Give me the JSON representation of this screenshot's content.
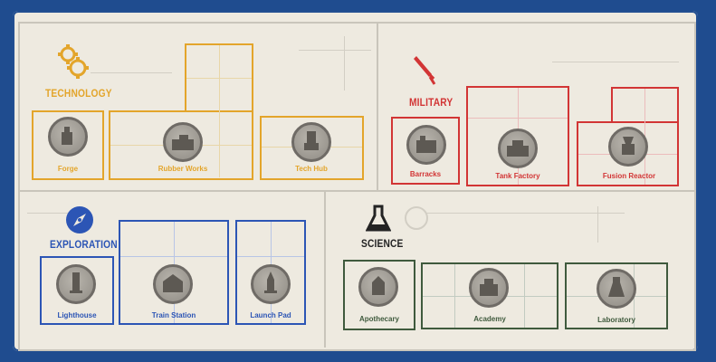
{
  "sections": {
    "technology": {
      "title": "TECHNOLOGY",
      "color": "#e3a52b",
      "icon": "gears-icon",
      "buildings": [
        {
          "name": "Forge"
        },
        {
          "name": "Rubber Works"
        },
        {
          "name": "Tech Hub"
        }
      ]
    },
    "military": {
      "title": "MILITARY",
      "color": "#d23535",
      "icon": "sword-icon",
      "buildings": [
        {
          "name": "Barracks"
        },
        {
          "name": "Tank Factory"
        },
        {
          "name": "Fusion Reactor"
        }
      ]
    },
    "exploration": {
      "title": "EXPLORATION",
      "color": "#2c55b5",
      "icon": "compass-icon",
      "buildings": [
        {
          "name": "Lighthouse"
        },
        {
          "name": "Train Station"
        },
        {
          "name": "Launch Pad"
        }
      ]
    },
    "science": {
      "title": "SCIENCE",
      "color": "#3f5a3d",
      "icon": "flask-icon",
      "buildings": [
        {
          "name": "Apothecary"
        },
        {
          "name": "Academy"
        },
        {
          "name": "Laboratory"
        }
      ]
    }
  }
}
